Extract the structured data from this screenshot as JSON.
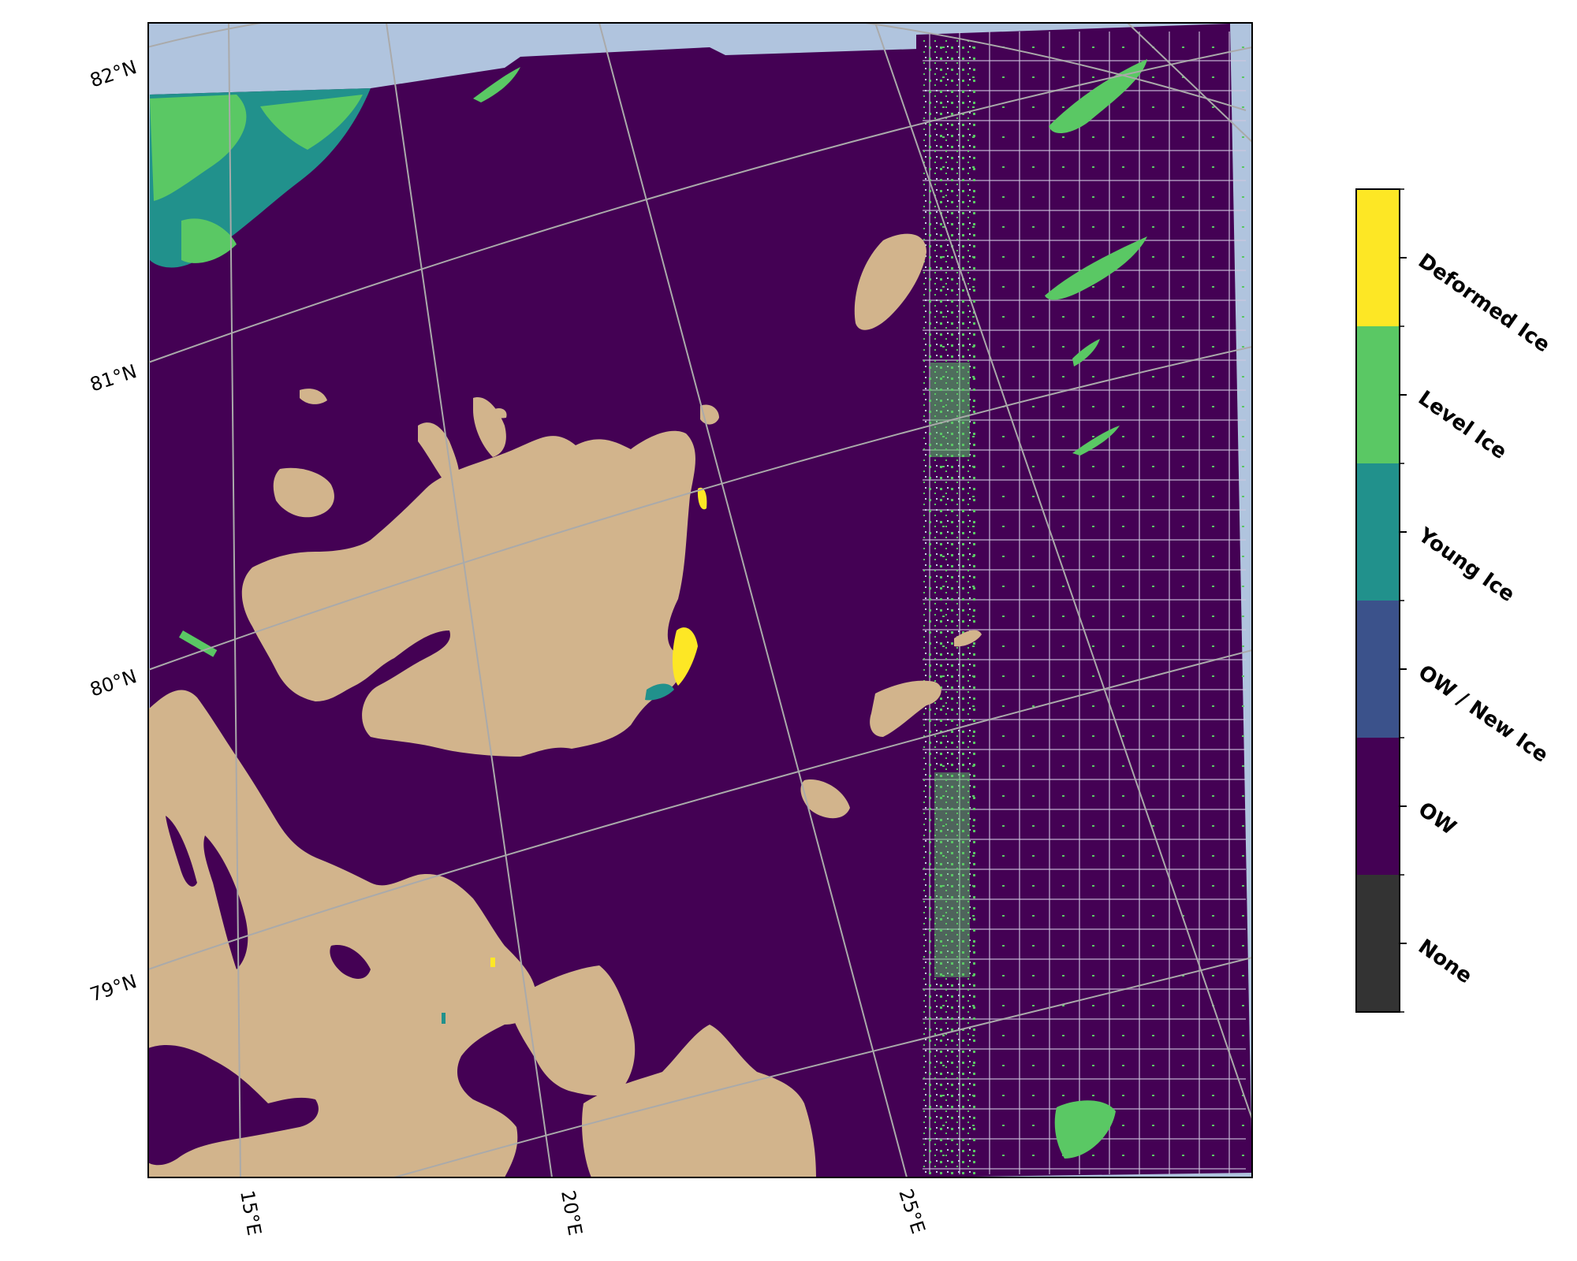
{
  "map": {
    "lat_labels": [
      "82°N",
      "81°N",
      "80°N",
      "79°N"
    ],
    "lon_labels": [
      "15°E",
      "20°E",
      "25°E"
    ],
    "colors": {
      "background_sea": "#b0c4de",
      "land": "#d2b48c",
      "ow": "#440154",
      "ow_new_ice": "#3b528b",
      "young_ice": "#21918c",
      "level_ice": "#5ac864",
      "deformed_ice": "#fde725",
      "none": "#333333",
      "gridline": "#aaaaaa"
    }
  },
  "colorbar": {
    "classes": [
      {
        "label": "Deformed Ice",
        "color": "#fde725"
      },
      {
        "label": "Level Ice",
        "color": "#5ac864"
      },
      {
        "label": "Young Ice",
        "color": "#21918c"
      },
      {
        "label": "OW / New Ice",
        "color": "#3b528b"
      },
      {
        "label": "OW",
        "color": "#440154"
      },
      {
        "label": "None",
        "color": "#333333"
      }
    ]
  }
}
